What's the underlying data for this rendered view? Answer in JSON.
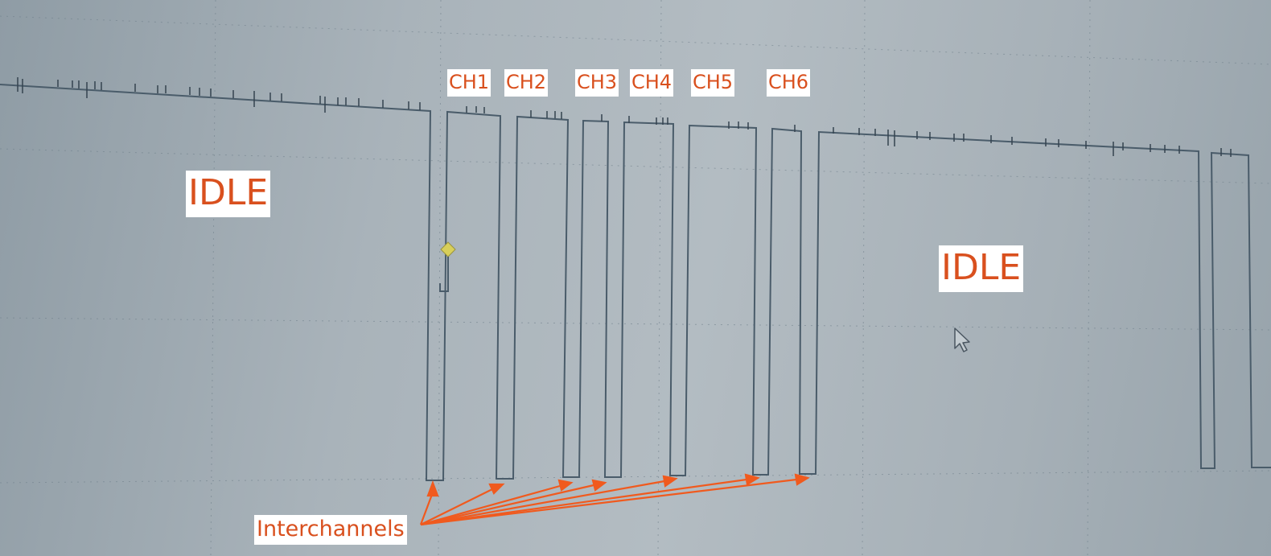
{
  "labels": {
    "idle_left": "IDLE",
    "idle_right": "IDLE",
    "interchannels": "Interchannels",
    "channels": [
      "CH1",
      "CH2",
      "CH3",
      "CH4",
      "CH5",
      "CH6"
    ]
  },
  "colors": {
    "annotation": "#d9501e",
    "arrow": "#f05a1e",
    "trace": "#4a5c6a",
    "grid": "#6f7f8a",
    "cursor_marker": "#d8cf5a"
  },
  "icons": {
    "cursor": "mouse-pointer-icon",
    "marker": "trigger-marker-icon"
  }
}
